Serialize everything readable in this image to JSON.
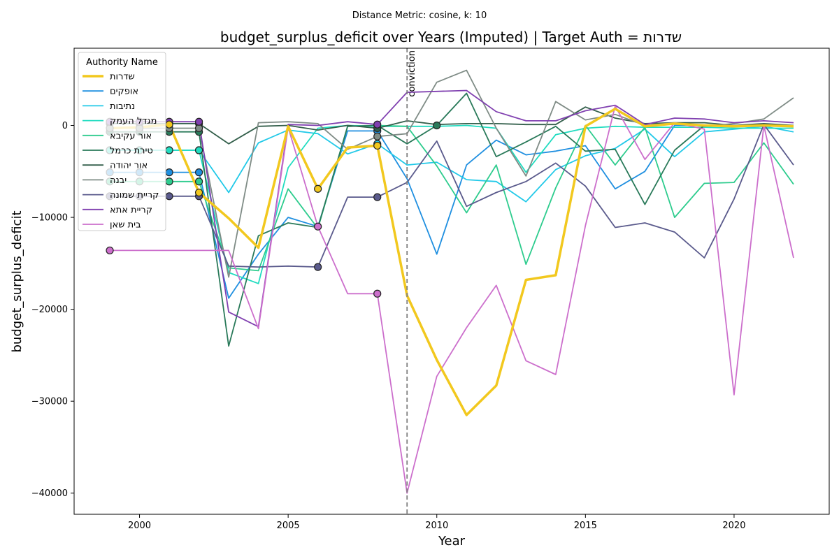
{
  "chart_data": {
    "type": "line",
    "suptitle": "Distance Metric: cosine, k: 10",
    "title": "budget_surplus_deficit over Years (Imputed) | Target Auth = שדרות",
    "xlabel": "Year",
    "ylabel": "budget_surplus_deficit",
    "xlim": [
      1997.8,
      2023.2
    ],
    "ylim": [
      -42300,
      8400
    ],
    "xticks": [
      2000,
      2005,
      2010,
      2015,
      2020
    ],
    "yticks": [
      -40000,
      -30000,
      -20000,
      -10000,
      0
    ],
    "ytick_labels": [
      "−40000",
      "−30000",
      "−20000",
      "−10000",
      "0"
    ],
    "legend_title": "Authority Name",
    "legend_position": "upper-left",
    "grid": false,
    "annotation": {
      "x": 2009,
      "label": "conviction",
      "color": "#808080"
    },
    "series": [
      {
        "name": "שדרות",
        "color": "#f2c81e",
        "width": 3.5,
        "x": [
          1999,
          2000,
          2001,
          2002,
          2003,
          2004,
          2005,
          2006,
          2007,
          2008,
          2009,
          2010,
          2011,
          2012,
          2013,
          2014,
          2015,
          2016,
          2017,
          2018,
          2019,
          2020,
          2021,
          2022
        ],
        "y": [
          -300,
          -200,
          100,
          -7300,
          -10100,
          -13300,
          -100,
          -6900,
          -2400,
          -2200,
          -18500,
          -25500,
          -31500,
          -28300,
          -16800,
          -16300,
          -100,
          1800,
          -100,
          200,
          0,
          -100,
          0,
          -100
        ],
        "imputed_x": [
          2001,
          2002,
          2006,
          2008
        ]
      },
      {
        "name": "אופקים",
        "color": "#1f8fe0",
        "width": 1.8,
        "x": [
          1999,
          2000,
          2001,
          2002,
          2003,
          2004,
          2005,
          2006,
          2007,
          2008,
          2009,
          2010,
          2011,
          2012,
          2013,
          2014,
          2015,
          2016,
          2017,
          2018,
          2019,
          2020,
          2021,
          2022
        ],
        "y": [
          -5100,
          -5100,
          -5100,
          -5100,
          -18800,
          -14000,
          -10000,
          -11000,
          -600,
          -600,
          -5800,
          -14000,
          -4300,
          -1600,
          -3200,
          -2800,
          -2200,
          -6900,
          -5000,
          0,
          0,
          0,
          0,
          0
        ],
        "imputed_x": [
          1999,
          2000,
          2001,
          2002,
          2008
        ]
      },
      {
        "name": "נתיבות",
        "color": "#22c9e8",
        "width": 1.8,
        "x": [
          1999,
          2000,
          2001,
          2002,
          2003,
          2004,
          2005,
          2006,
          2007,
          2008,
          2009,
          2010,
          2011,
          2012,
          2013,
          2014,
          2015,
          2016,
          2017,
          2018,
          2019,
          2020,
          2021,
          2022
        ],
        "y": [
          -2700,
          -2700,
          -2700,
          -2700,
          -7300,
          -1900,
          -500,
          -900,
          -3100,
          -2000,
          -4300,
          -4000,
          -5900,
          -6100,
          -8300,
          -4800,
          -3300,
          -2500,
          -400,
          -3400,
          -700,
          -400,
          -100,
          -700
        ],
        "imputed_x": [
          1999,
          2000,
          2001,
          2002,
          2008
        ]
      },
      {
        "name": "מגדל העמק",
        "color": "#20dcc0",
        "width": 1.8,
        "x": [
          1999,
          2000,
          2001,
          2002,
          2003,
          2004,
          2005,
          2006,
          2007,
          2008,
          2009,
          2010,
          2011,
          2012,
          2013,
          2014,
          2015,
          2016,
          2017,
          2018,
          2019,
          2020,
          2021,
          2022
        ],
        "y": [
          -2700,
          -2700,
          -2700,
          -2700,
          -16000,
          -17200,
          -4600,
          -300,
          0,
          -100,
          -100,
          -100,
          0,
          -300,
          -5100,
          -1000,
          -300,
          -100,
          -200,
          -200,
          -200,
          -300,
          -300,
          -300
        ],
        "imputed_x": [
          1999,
          2000,
          2001,
          2002
        ]
      },
      {
        "name": "אור עקיבא",
        "color": "#2ecc8e",
        "width": 1.8,
        "x": [
          1999,
          2000,
          2001,
          2002,
          2003,
          2004,
          2005,
          2006,
          2007,
          2008,
          2009,
          2010,
          2011,
          2012,
          2013,
          2014,
          2015,
          2016,
          2017,
          2018,
          2019,
          2020,
          2021,
          2022
        ],
        "y": [
          -6100,
          -6100,
          -6100,
          -6100,
          -15500,
          -15800,
          -6900,
          -11200,
          -100,
          0,
          -100,
          -4400,
          -9500,
          -4300,
          -15100,
          -6800,
          0,
          -4300,
          -200,
          -10000,
          -6300,
          -6200,
          -1900,
          -6400
        ],
        "imputed_x": [
          1999,
          2000,
          2001,
          2002
        ]
      },
      {
        "name": "טירת כרמל",
        "color": "#2a7a5a",
        "width": 1.8,
        "x": [
          1999,
          2000,
          2001,
          2002,
          2003,
          2004,
          2005,
          2006,
          2007,
          2008,
          2009,
          2010,
          2011,
          2012,
          2013,
          2014,
          2015,
          2016,
          2017,
          2018,
          2019,
          2020,
          2021,
          2022
        ],
        "y": [
          -700,
          -700,
          -700,
          -700,
          -24000,
          -12000,
          -10600,
          -11100,
          -100,
          0,
          -2000,
          0,
          3500,
          -3400,
          -1800,
          -100,
          -2800,
          -2600,
          -8600,
          -2700,
          0,
          0,
          0,
          0
        ],
        "imputed_x": [
          1999,
          2000,
          2001,
          2002,
          2010
        ]
      },
      {
        "name": "אור יהודה",
        "color": "#335f4b",
        "width": 1.8,
        "x": [
          1999,
          2000,
          2001,
          2002,
          2003,
          2004,
          2005,
          2006,
          2007,
          2008,
          2009,
          2010,
          2011,
          2012,
          2013,
          2014,
          2015,
          2016,
          2017,
          2018,
          2019,
          2020,
          2021,
          2022
        ],
        "y": [
          200,
          200,
          200,
          200,
          -2000,
          -100,
          0,
          -500,
          0,
          -300,
          500,
          100,
          200,
          200,
          100,
          100,
          2000,
          800,
          200,
          300,
          300,
          0,
          200,
          0
        ],
        "imputed_x": [
          1999,
          2000,
          2001,
          2002,
          2008
        ]
      },
      {
        "name": "יבנה",
        "color": "#7f8c86",
        "width": 1.8,
        "x": [
          1999,
          2000,
          2001,
          2002,
          2003,
          2004,
          2005,
          2006,
          2007,
          2008,
          2009,
          2010,
          2011,
          2012,
          2013,
          2014,
          2015,
          2016,
          2017,
          2018,
          2019,
          2020,
          2021,
          2022
        ],
        "y": [
          -300,
          -300,
          -300,
          -300,
          -16500,
          300,
          400,
          200,
          -2600,
          -1200,
          -900,
          4700,
          6000,
          -300,
          -5500,
          2600,
          600,
          1200,
          0,
          300,
          -100,
          200,
          700,
          3000
        ],
        "imputed_x": [
          1999,
          2000,
          2001,
          2002,
          2008
        ]
      },
      {
        "name": "קריית שמונה",
        "color": "#5a5a8c",
        "width": 1.8,
        "x": [
          1999,
          2000,
          2001,
          2002,
          2003,
          2004,
          2005,
          2006,
          2007,
          2008,
          2009,
          2010,
          2011,
          2012,
          2013,
          2014,
          2015,
          2016,
          2017,
          2018,
          2019,
          2020,
          2021,
          2022
        ],
        "y": [
          -7700,
          -7700,
          -7700,
          -7700,
          -15300,
          -15400,
          -15300,
          -15400,
          -7800,
          -7800,
          -6200,
          -1700,
          -8800,
          -7300,
          -6100,
          -4100,
          -6600,
          -11100,
          -10600,
          -11600,
          -14400,
          -8000,
          100,
          -4300
        ],
        "imputed_x": [
          1999,
          2000,
          2001,
          2002,
          2006,
          2008
        ]
      },
      {
        "name": "קריית אתא",
        "color": "#8040b0",
        "width": 1.8,
        "x": [
          1999,
          2000,
          2001,
          2002,
          2003,
          2004,
          2005,
          2006,
          2007,
          2008,
          2009,
          2010,
          2011,
          2012,
          2013,
          2014,
          2015,
          2016,
          2017,
          2018,
          2019,
          2020,
          2021,
          2022
        ],
        "y": [
          400,
          400,
          400,
          400,
          -20300,
          -21900,
          100,
          0,
          400,
          100,
          3600,
          3700,
          3800,
          1500,
          500,
          500,
          1600,
          2200,
          100,
          800,
          700,
          300,
          500,
          300
        ],
        "imputed_x": [
          1999,
          2000,
          2001,
          2002,
          2008
        ]
      },
      {
        "name": "בית שאן",
        "color": "#cc6fcc",
        "width": 1.8,
        "x": [
          1999,
          2000,
          2001,
          2002,
          2003,
          2004,
          2005,
          2006,
          2007,
          2008,
          2009,
          2010,
          2011,
          2012,
          2013,
          2014,
          2015,
          2016,
          2017,
          2018,
          2019,
          2020,
          2021,
          2022
        ],
        "y": [
          -13600,
          -13600,
          -13600,
          -13600,
          -13600,
          -22100,
          -200,
          -11000,
          -18300,
          -18300,
          -40000,
          -27300,
          -22000,
          -17400,
          -25600,
          -27100,
          -10900,
          2100,
          -3700,
          300,
          -400,
          -29300,
          0,
          -14400
        ],
        "imputed_x": [
          1999,
          2006,
          2008
        ]
      }
    ]
  }
}
